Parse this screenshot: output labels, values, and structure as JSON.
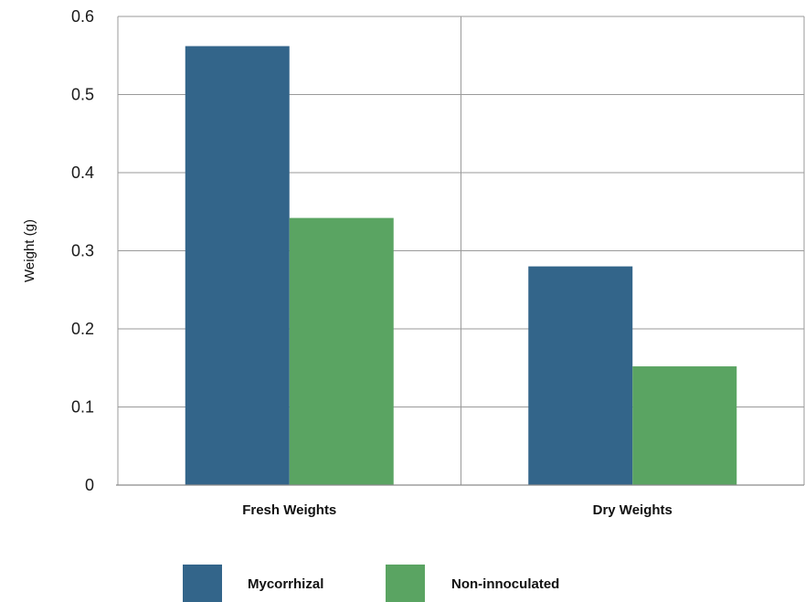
{
  "chart_data": {
    "type": "bar",
    "categories": [
      "Fresh Weights",
      "Dry Weights"
    ],
    "series": [
      {
        "name": "Mycorrhizal",
        "values": [
          0.562,
          0.28
        ],
        "color": "#33658a"
      },
      {
        "name": "Non-innoculated",
        "values": [
          0.342,
          0.152
        ],
        "color": "#5aa462"
      }
    ],
    "title": "",
    "xlabel": "",
    "ylabel": "Weight (g)",
    "ylim": [
      0,
      0.6
    ],
    "yticks": [
      "0",
      "0.1",
      "0.2",
      "0.3",
      "0.4",
      "0.5",
      "0.6"
    ],
    "grid": true,
    "legend_position": "bottom"
  }
}
